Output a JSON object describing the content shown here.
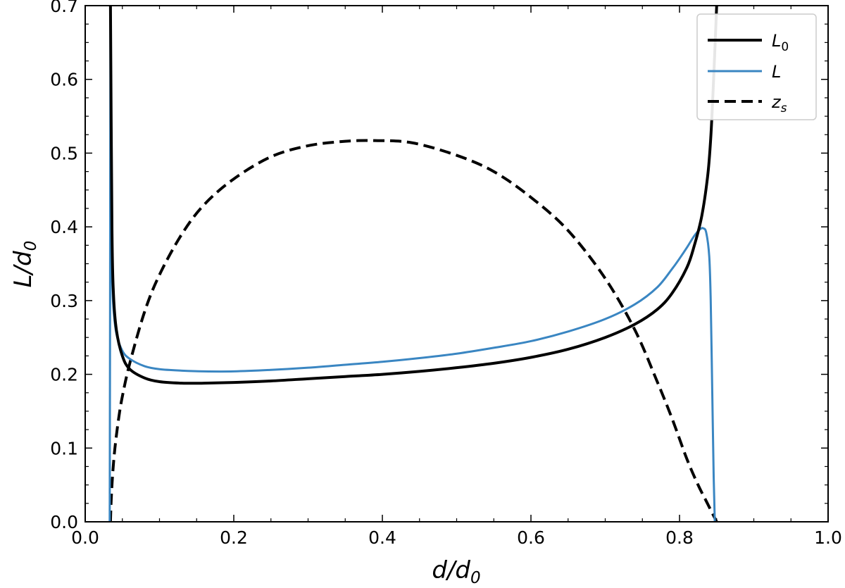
{
  "chart_data": {
    "type": "line",
    "title": "",
    "xlabel": {
      "base": "d/d",
      "sub": "0"
    },
    "ylabel": {
      "base": "L/d",
      "sub": "0"
    },
    "xlim": [
      0.0,
      1.0
    ],
    "ylim": [
      0.0,
      0.7
    ],
    "x_ticks": [
      0.0,
      0.2,
      0.4,
      0.6,
      0.8,
      1.0
    ],
    "x_tick_labels": [
      "0.0",
      "0.2",
      "0.4",
      "0.6",
      "0.8",
      "1.0"
    ],
    "y_ticks": [
      0.0,
      0.1,
      0.2,
      0.3,
      0.4,
      0.5,
      0.6,
      0.7
    ],
    "y_tick_labels": [
      "0.0",
      "0.1",
      "0.2",
      "0.3",
      "0.4",
      "0.5",
      "0.6",
      "0.7"
    ],
    "grid": false,
    "legend_position": "top-right",
    "series": [
      {
        "key": "L0",
        "name": {
          "base": "L",
          "sub": "0"
        },
        "color": "#000000",
        "style": "solid",
        "x": [
          0.034,
          0.036,
          0.038,
          0.042,
          0.05,
          0.06,
          0.08,
          0.1,
          0.13,
          0.16,
          0.2,
          0.25,
          0.3,
          0.35,
          0.4,
          0.45,
          0.5,
          0.55,
          0.6,
          0.65,
          0.7,
          0.74,
          0.77,
          0.79,
          0.81,
          0.82,
          0.83,
          0.838,
          0.842,
          0.845,
          0.848,
          0.85
        ],
        "y": [
          0.7,
          0.4,
          0.31,
          0.26,
          0.225,
          0.207,
          0.195,
          0.19,
          0.188,
          0.188,
          0.189,
          0.191,
          0.194,
          0.197,
          0.2,
          0.204,
          0.209,
          0.215,
          0.223,
          0.234,
          0.25,
          0.268,
          0.288,
          0.31,
          0.345,
          0.375,
          0.415,
          0.47,
          0.52,
          0.58,
          0.65,
          0.7
        ]
      },
      {
        "key": "L",
        "name": {
          "base": "L",
          "sub": ""
        },
        "color": "#3a86c2",
        "style": "solid",
        "x": [
          0.033,
          0.0335,
          0.034,
          0.0345,
          0.035,
          0.036,
          0.038,
          0.042,
          0.05,
          0.06,
          0.08,
          0.1,
          0.13,
          0.16,
          0.2,
          0.25,
          0.3,
          0.35,
          0.4,
          0.45,
          0.5,
          0.55,
          0.6,
          0.65,
          0.7,
          0.74,
          0.77,
          0.79,
          0.8,
          0.81,
          0.82,
          0.828,
          0.832,
          0.836,
          0.84,
          0.842,
          0.844,
          0.846,
          0.8475
        ],
        "y": [
          0.0,
          0.3,
          0.7,
          0.55,
          0.42,
          0.34,
          0.29,
          0.255,
          0.232,
          0.221,
          0.211,
          0.207,
          0.205,
          0.204,
          0.204,
          0.206,
          0.209,
          0.213,
          0.217,
          0.222,
          0.228,
          0.236,
          0.245,
          0.258,
          0.275,
          0.295,
          0.318,
          0.343,
          0.357,
          0.372,
          0.388,
          0.397,
          0.398,
          0.392,
          0.36,
          0.3,
          0.18,
          0.06,
          0.0
        ]
      },
      {
        "key": "zs",
        "name": {
          "base": "z",
          "sub": "s"
        },
        "color": "#000000",
        "style": "dashed",
        "x": [
          0.034,
          0.035,
          0.037,
          0.04,
          0.045,
          0.05,
          0.06,
          0.08,
          0.1,
          0.13,
          0.16,
          0.2,
          0.25,
          0.3,
          0.35,
          0.39,
          0.44,
          0.5,
          0.55,
          0.6,
          0.65,
          0.7,
          0.74,
          0.77,
          0.79,
          0.81,
          0.825,
          0.835,
          0.842,
          0.846,
          0.849,
          0.85
        ],
        "y": [
          0.0,
          0.03,
          0.065,
          0.1,
          0.14,
          0.17,
          0.215,
          0.285,
          0.335,
          0.39,
          0.43,
          0.465,
          0.495,
          0.51,
          0.516,
          0.517,
          0.514,
          0.497,
          0.475,
          0.44,
          0.395,
          0.33,
          0.26,
          0.19,
          0.14,
          0.085,
          0.05,
          0.03,
          0.016,
          0.008,
          0.002,
          0.0
        ]
      }
    ]
  }
}
